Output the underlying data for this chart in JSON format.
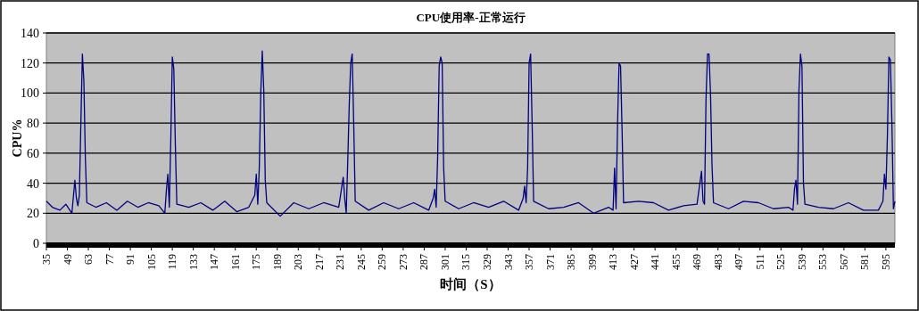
{
  "chart_data": {
    "type": "line",
    "title": "CPU使用率-正常运行",
    "xlabel": "时间（S）",
    "ylabel": "CPU%",
    "xlim": [
      35,
      601
    ],
    "ylim": [
      0,
      140
    ],
    "yticks": [
      0,
      20,
      40,
      60,
      80,
      100,
      120,
      140
    ],
    "xticks": [
      35,
      49,
      63,
      77,
      91,
      105,
      119,
      133,
      147,
      161,
      175,
      189,
      203,
      217,
      231,
      245,
      259,
      273,
      287,
      301,
      315,
      329,
      343,
      357,
      371,
      385,
      399,
      413,
      427,
      441,
      455,
      469,
      483,
      497,
      511,
      525,
      539,
      553,
      567,
      581,
      595
    ],
    "grid": "y",
    "marker": "none",
    "line_style": "solid",
    "series": [
      {
        "color": "#000080",
        "x": [
          35,
          39,
          44,
          48,
          52,
          54,
          55,
          56,
          57,
          58,
          59,
          60,
          61,
          62,
          68,
          75,
          82,
          89,
          96,
          103,
          110,
          114,
          115,
          116,
          117,
          118,
          119,
          120,
          121,
          122,
          130,
          138,
          146,
          154,
          162,
          170,
          174,
          175,
          176,
          177,
          178,
          179,
          180,
          181,
          182,
          191,
          200,
          210,
          220,
          230,
          233,
          234,
          235,
          236,
          237,
          238,
          239,
          240,
          241,
          250,
          260,
          270,
          280,
          290,
          293,
          294,
          295,
          296,
          297,
          298,
          299,
          300,
          301,
          310,
          320,
          330,
          340,
          350,
          353,
          354,
          355,
          356,
          357,
          358,
          359,
          360,
          370,
          380,
          390,
          400,
          410,
          413,
          414,
          415,
          416,
          417,
          418,
          419,
          420,
          430,
          440,
          450,
          460,
          469,
          472,
          473,
          474,
          475,
          476,
          477,
          478,
          479,
          480,
          490,
          500,
          510,
          520,
          530,
          533,
          534,
          535,
          536,
          537,
          538,
          539,
          540,
          541,
          550,
          560,
          570,
          580,
          590,
          593,
          594,
          595,
          596,
          597,
          598,
          599,
          600,
          601
        ],
        "values": [
          28,
          24,
          22,
          26,
          20,
          42,
          30,
          25,
          32,
          80,
          126,
          108,
          56,
          27,
          24,
          27,
          22,
          28,
          24,
          27,
          25,
          20,
          35,
          46,
          24,
          70,
          124,
          116,
          66,
          26,
          24,
          27,
          22,
          28,
          21,
          24,
          32,
          46,
          26,
          50,
          100,
          128,
          102,
          42,
          27,
          18,
          27,
          23,
          27,
          24,
          44,
          30,
          20,
          54,
          92,
          120,
          126,
          80,
          28,
          22,
          27,
          23,
          27,
          22,
          30,
          36,
          24,
          58,
          118,
          124,
          120,
          50,
          28,
          23,
          27,
          24,
          28,
          22,
          30,
          38,
          27,
          50,
          120,
          126,
          80,
          28,
          23,
          24,
          27,
          20,
          24,
          22,
          50,
          23,
          80,
          120,
          118,
          76,
          27,
          28,
          27,
          22,
          25,
          26,
          48,
          28,
          26,
          96,
          126,
          126,
          100,
          52,
          27,
          23,
          28,
          27,
          23,
          24,
          22,
          36,
          42,
          26,
          102,
          126,
          118,
          40,
          26,
          24,
          23,
          27,
          22,
          22,
          28,
          46,
          36,
          72,
          124,
          122,
          80,
          23,
          28
        ]
      }
    ]
  }
}
